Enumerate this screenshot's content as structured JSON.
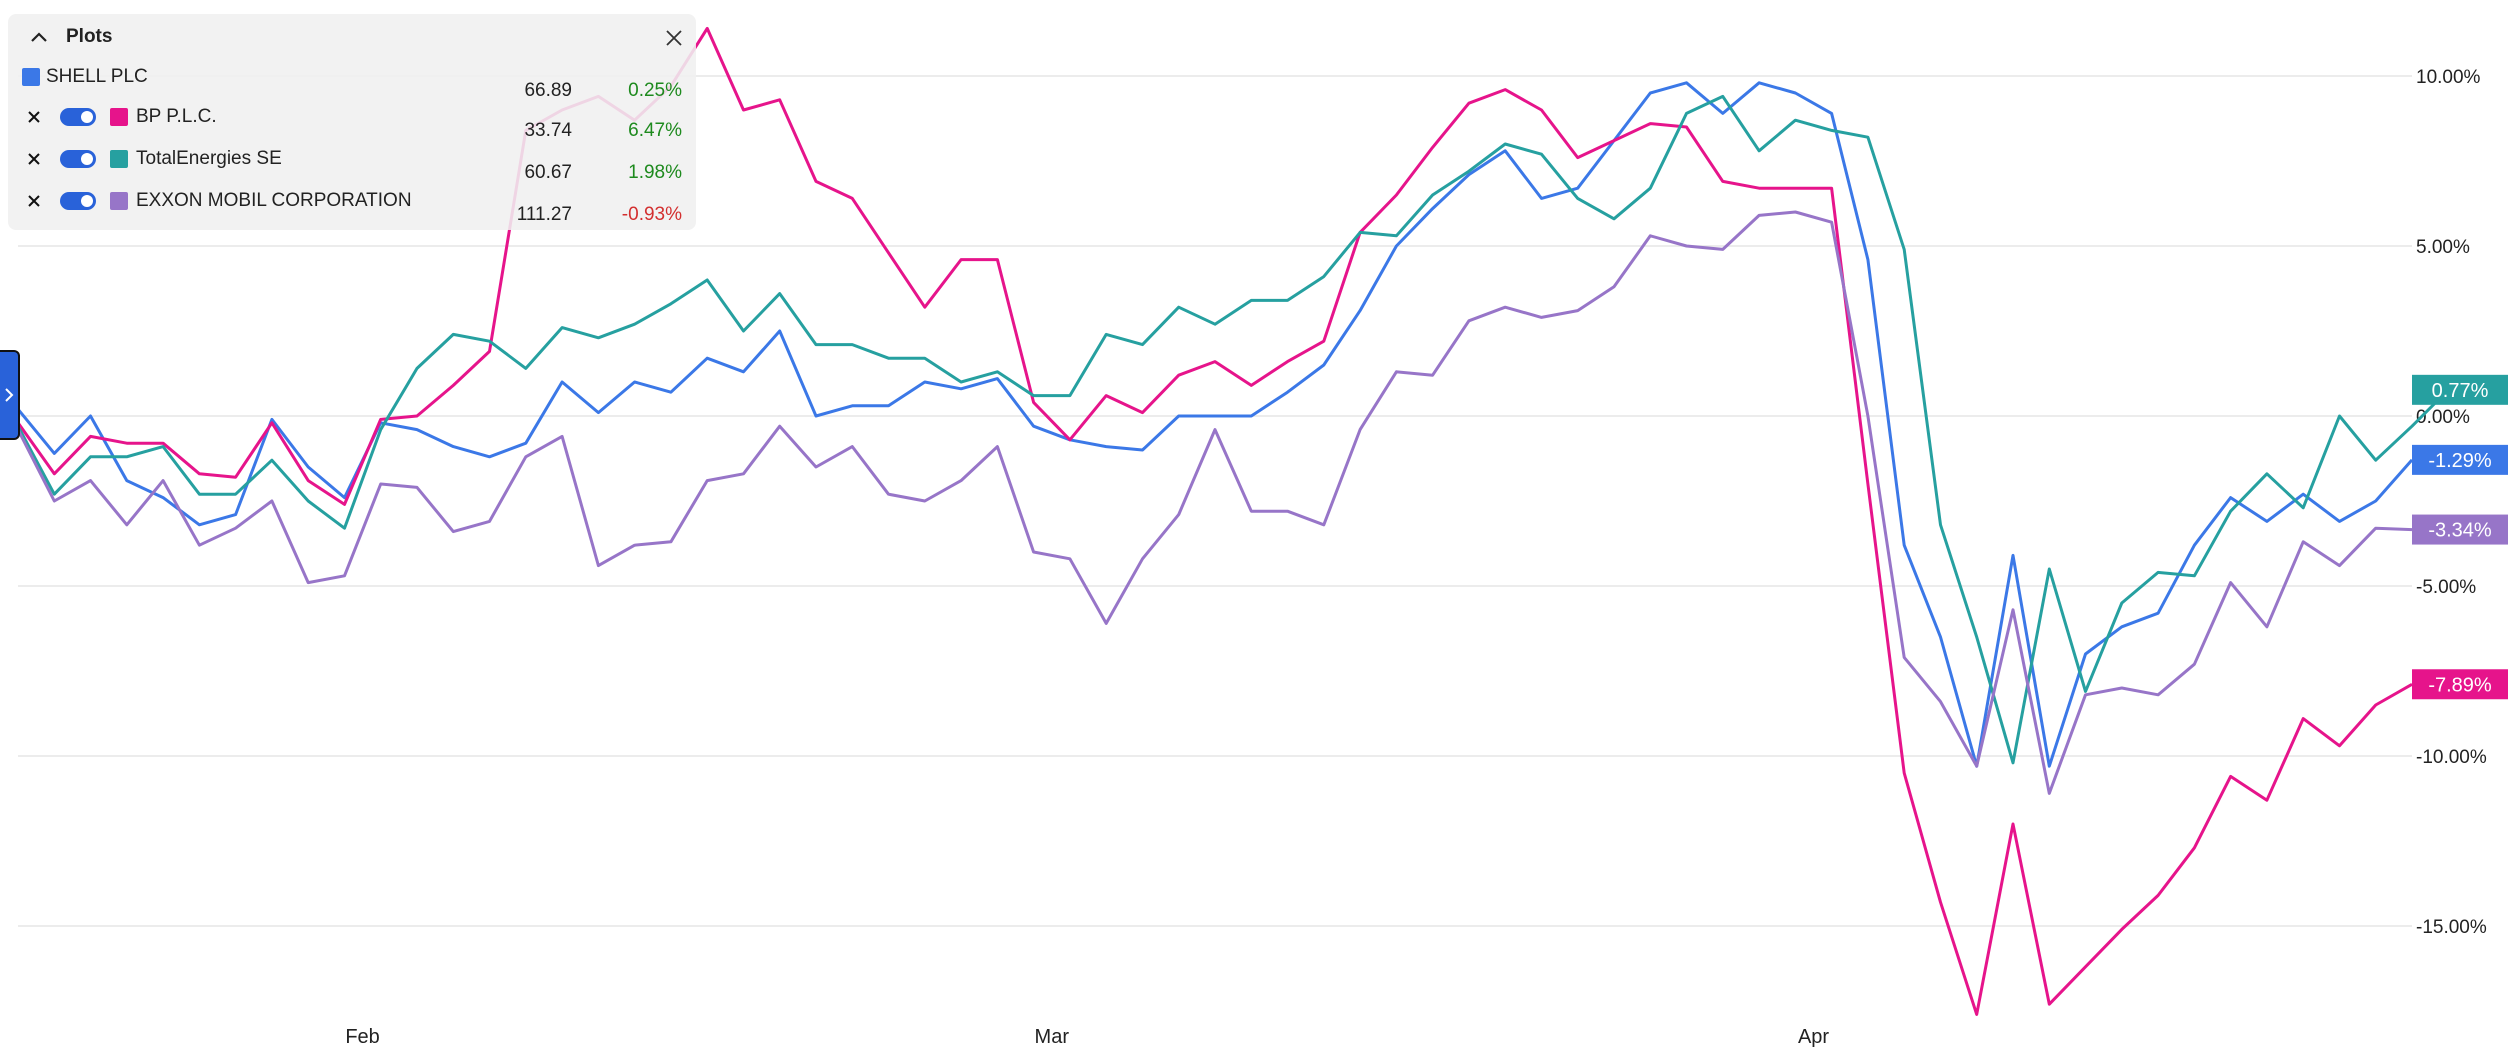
{
  "panel": {
    "title": "Plots",
    "rows": [
      {
        "name": "SHELL PLC",
        "price": "66.89",
        "change": "0.25%",
        "color": "#3b78e7",
        "change_color": "#1e8a1e",
        "removable": false
      },
      {
        "name": "BP P.L.C.",
        "price": "33.74",
        "change": "6.47%",
        "color": "#e6148b",
        "change_color": "#1e8a1e",
        "removable": true
      },
      {
        "name": "TotalEnergies SE",
        "price": "60.67",
        "change": "1.98%",
        "color": "#26a0a0",
        "change_color": "#1e8a1e",
        "removable": true
      },
      {
        "name": "EXXON MOBIL CORPORATION",
        "price": "111.27",
        "change": "-0.93%",
        "color": "#9775c8",
        "change_color": "#d32f2f",
        "removable": true
      }
    ]
  },
  "chart_data": {
    "type": "line",
    "ylim": [
      -17.6,
      11.4
    ],
    "yticks": [
      10,
      5,
      0,
      -5,
      -10,
      -15
    ],
    "ytick_labels": [
      "10.00%",
      "5.00%",
      "0.00%",
      "-5.00%",
      "-10.00%",
      "-15.00%"
    ],
    "x_month_labels": [
      {
        "label": "Feb",
        "index": 9.5
      },
      {
        "label": "Mar",
        "index": 28.5
      },
      {
        "label": "Apr",
        "index": 49.5
      }
    ],
    "grid": true,
    "series": [
      {
        "name": "SHELL PLC",
        "color": "#3b78e7",
        "end_label": "-1.29%",
        "values": [
          0.2,
          -1.1,
          0,
          -1.9,
          -2.4,
          -3.2,
          -2.9,
          -0.1,
          -1.5,
          -2.4,
          -0.2,
          -0.4,
          -0.9,
          -1.2,
          -0.8,
          1.0,
          0.1,
          1.0,
          0.7,
          1.7,
          1.3,
          2.5,
          0,
          0.3,
          0.3,
          1.0,
          0.8,
          1.1,
          -0.3,
          -0.7,
          -0.9,
          -1.0,
          0,
          0,
          0,
          0.7,
          1.5,
          3.1,
          5.0,
          6.1,
          7.1,
          7.8,
          6.4,
          6.7,
          8.1,
          9.5,
          9.8,
          8.9,
          9.8,
          9.5,
          8.9,
          4.6,
          -3.8,
          -6.5,
          -10.3,
          -4.1,
          -10.3,
          -7.0,
          -6.2,
          -5.8,
          -3.8,
          -2.4,
          -3.1,
          -2.3,
          -3.1,
          -2.5,
          -1.29
        ]
      },
      {
        "name": "BP P.L.C.",
        "color": "#e6148b",
        "end_label": "-7.89%",
        "values": [
          -0.2,
          -1.7,
          -0.6,
          -0.8,
          -0.8,
          -1.7,
          -1.8,
          -0.2,
          -1.9,
          -2.6,
          -0.1,
          0,
          0.9,
          1.9,
          8.4,
          9.0,
          9.4,
          8.7,
          9.7,
          11.4,
          9.0,
          9.3,
          6.9,
          6.4,
          4.8,
          3.2,
          4.6,
          4.6,
          0.4,
          -0.7,
          0.6,
          0.1,
          1.2,
          1.6,
          0.9,
          1.6,
          2.2,
          5.4,
          6.5,
          7.9,
          9.2,
          9.6,
          9.0,
          7.6,
          8.1,
          8.6,
          8.5,
          6.9,
          6.7,
          6.7,
          6.7,
          -2.0,
          -10.5,
          -14.3,
          -17.6,
          -12.0,
          -17.3,
          -16.2,
          -15.1,
          -14.1,
          -12.7,
          -10.6,
          -11.3,
          -8.9,
          -9.7,
          -8.5,
          -7.89
        ]
      },
      {
        "name": "TotalEnergies SE",
        "color": "#26a0a0",
        "end_label": "0.77%",
        "values": [
          -0.3,
          -2.3,
          -1.2,
          -1.2,
          -0.9,
          -2.3,
          -2.3,
          -1.3,
          -2.5,
          -3.3,
          -0.4,
          1.4,
          2.4,
          2.2,
          1.4,
          2.6,
          2.3,
          2.7,
          3.3,
          4.0,
          2.5,
          3.6,
          2.1,
          2.1,
          1.7,
          1.7,
          1.0,
          1.3,
          0.6,
          0.6,
          2.4,
          2.1,
          3.2,
          2.7,
          3.4,
          3.4,
          4.1,
          5.4,
          5.3,
          6.5,
          7.2,
          8.0,
          7.7,
          6.4,
          5.8,
          6.7,
          8.9,
          9.4,
          7.8,
          8.7,
          8.4,
          8.2,
          4.9,
          -3.2,
          -6.5,
          -10.2,
          -4.5,
          -8.1,
          -5.5,
          -4.6,
          -4.7,
          -2.8,
          -1.7,
          -2.7,
          0,
          -1.3,
          -0.3,
          0.77
        ]
      },
      {
        "name": "EXXON MOBIL CORPORATION",
        "color": "#9775c8",
        "end_label": "-3.34%",
        "values": [
          -0.4,
          -2.5,
          -1.9,
          -3.2,
          -1.9,
          -3.8,
          -3.3,
          -2.5,
          -4.9,
          -4.7,
          -2.0,
          -2.1,
          -3.4,
          -3.1,
          -1.2,
          -0.6,
          -4.4,
          -3.8,
          -3.7,
          -1.9,
          -1.7,
          -0.3,
          -1.5,
          -0.9,
          -2.3,
          -2.5,
          -1.9,
          -0.9,
          -4.0,
          -4.2,
          -6.1,
          -4.2,
          -2.9,
          -0.4,
          -2.8,
          -2.8,
          -3.2,
          -0.4,
          1.3,
          1.2,
          2.8,
          3.2,
          2.9,
          3.1,
          3.8,
          5.3,
          5.0,
          4.9,
          5.9,
          6.0,
          5.7,
          0,
          -7.1,
          -8.4,
          -10.3,
          -5.7,
          -11.1,
          -8.2,
          -8.0,
          -8.2,
          -7.3,
          -4.9,
          -6.2,
          -3.7,
          -4.4,
          -3.3,
          -3.34
        ]
      }
    ]
  }
}
